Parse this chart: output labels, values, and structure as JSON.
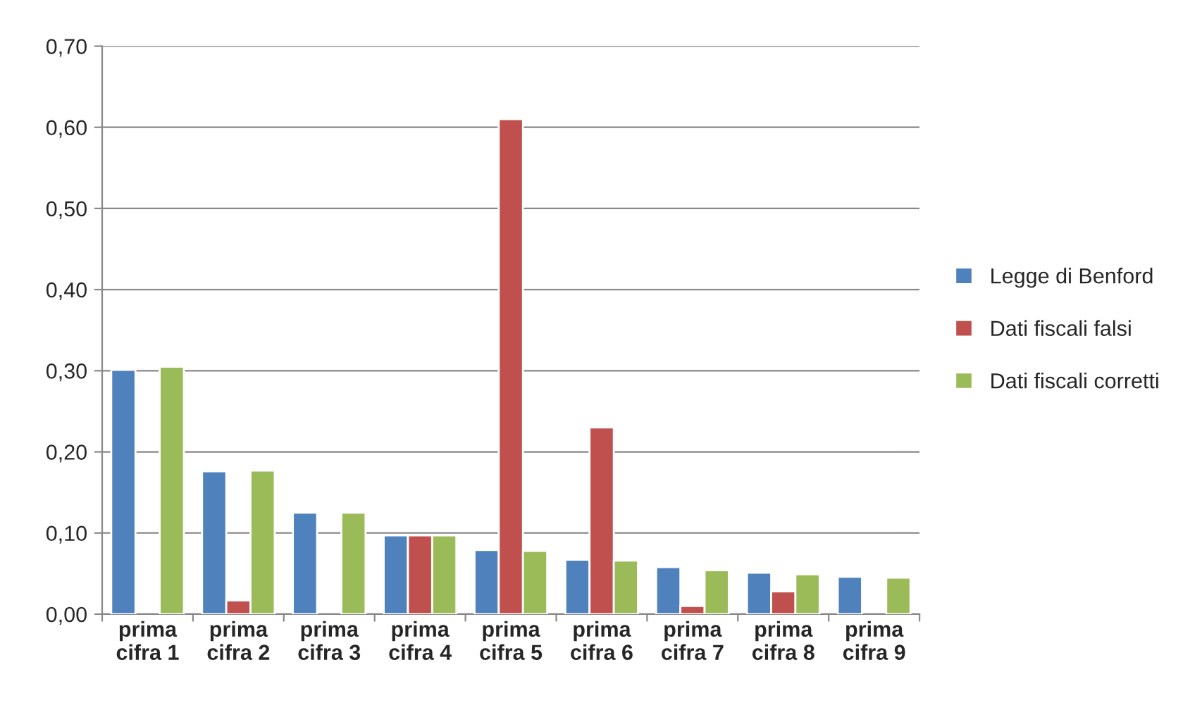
{
  "chart_data": {
    "type": "bar",
    "categories": [
      "prima\ncifra 1",
      "prima\ncifra 2",
      "prima\ncifra 3",
      "prima\ncifra 4",
      "prima\ncifra 5",
      "prima\ncifra 6",
      "prima\ncifra 7",
      "prima\ncifra 8",
      "prima\ncifra 9"
    ],
    "series": [
      {
        "name": "Legge di Benford",
        "color": "#4f81bd",
        "values": [
          0.301,
          0.176,
          0.125,
          0.097,
          0.079,
          0.067,
          0.058,
          0.051,
          0.046
        ]
      },
      {
        "name": "Dati fiscali falsi",
        "color": "#c0504d",
        "values": [
          null,
          0.017,
          null,
          0.097,
          0.61,
          0.23,
          0.01,
          0.028,
          null
        ]
      },
      {
        "name": "Dati fiscali corretti",
        "color": "#9bbb59",
        "values": [
          0.305,
          0.177,
          0.125,
          0.097,
          0.078,
          0.066,
          0.054,
          0.049,
          0.045
        ]
      }
    ],
    "ylim": [
      0,
      0.7
    ],
    "yticks": [
      {
        "value": 0,
        "label": "0,00"
      },
      {
        "value": 0.1,
        "label": "0,10"
      },
      {
        "value": 0.2,
        "label": "0,20"
      },
      {
        "value": 0.3,
        "label": "0,30"
      },
      {
        "value": 0.4,
        "label": "0,40"
      },
      {
        "value": 0.5,
        "label": "0,50"
      },
      {
        "value": 0.6,
        "label": "0,60"
      },
      {
        "value": 0.7,
        "label": "0,70"
      }
    ],
    "grid": "y",
    "legend": "right"
  }
}
